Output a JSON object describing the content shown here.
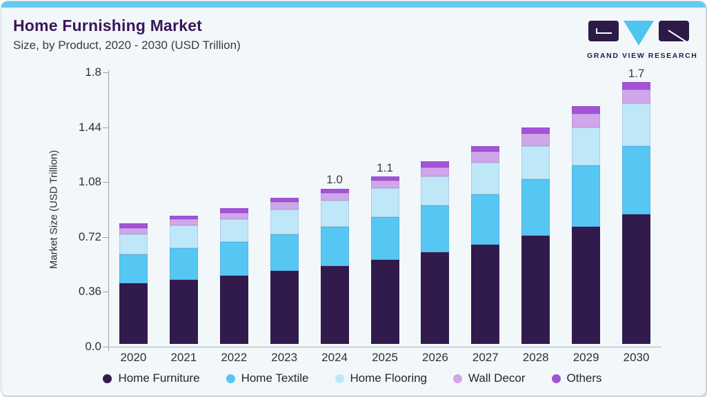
{
  "header": {
    "title": "Home Furnishing Market",
    "subtitle": "Size, by Product, 2020 - 2030 (USD Trillion)"
  },
  "logo": {
    "text": "GRAND VIEW RESEARCH",
    "brand_dark": "#2E1A47",
    "brand_cyan": "#4FC4EF"
  },
  "colors": {
    "accent_top_bar": "#63C9F1",
    "card_background": "#F2F7FA",
    "title_purple": "#3A1659",
    "axis_gray": "#9AA0A8"
  },
  "chart_data": {
    "type": "bar",
    "stacked": true,
    "title": "Home Furnishing Market Size, by Product, 2020 - 2030 (USD Trillion)",
    "categories": [
      "2020",
      "2021",
      "2022",
      "2023",
      "2024",
      "2025",
      "2026",
      "2027",
      "2028",
      "2029",
      "2030"
    ],
    "series": [
      {
        "name": "Home Furniture",
        "color": "#311A4C",
        "values": [
          0.4,
          0.42,
          0.45,
          0.48,
          0.51,
          0.55,
          0.6,
          0.65,
          0.71,
          0.77,
          0.85
        ]
      },
      {
        "name": "Home Textile",
        "color": "#56C7F2",
        "values": [
          0.19,
          0.21,
          0.22,
          0.24,
          0.26,
          0.28,
          0.31,
          0.33,
          0.37,
          0.4,
          0.45
        ]
      },
      {
        "name": "Home Flooring",
        "color": "#BEE7F8",
        "values": [
          0.13,
          0.15,
          0.15,
          0.16,
          0.17,
          0.19,
          0.19,
          0.21,
          0.22,
          0.25,
          0.28
        ]
      },
      {
        "name": "Wall Decor",
        "color": "#CFA6EA",
        "values": [
          0.04,
          0.04,
          0.04,
          0.05,
          0.05,
          0.05,
          0.06,
          0.07,
          0.08,
          0.09,
          0.09
        ]
      },
      {
        "name": "Others",
        "color": "#A453D6",
        "values": [
          0.03,
          0.02,
          0.03,
          0.03,
          0.03,
          0.03,
          0.04,
          0.04,
          0.04,
          0.05,
          0.05
        ]
      }
    ],
    "bar_total_labels": [
      "",
      "",
      "",
      "",
      "1.0",
      "1.1",
      "",
      "",
      "",
      "",
      "1.7"
    ],
    "ylabel": "Market Size (USD Trillion)",
    "ylim": [
      0,
      1.8
    ],
    "yticks": [
      0,
      0.36,
      0.72,
      1.08,
      1.44,
      1.8
    ],
    "ytick_labels": [
      "0.0",
      "0.36",
      "0.72",
      "1.08",
      "1.44",
      "1.8"
    ],
    "grid": false,
    "legend_position": "bottom"
  }
}
